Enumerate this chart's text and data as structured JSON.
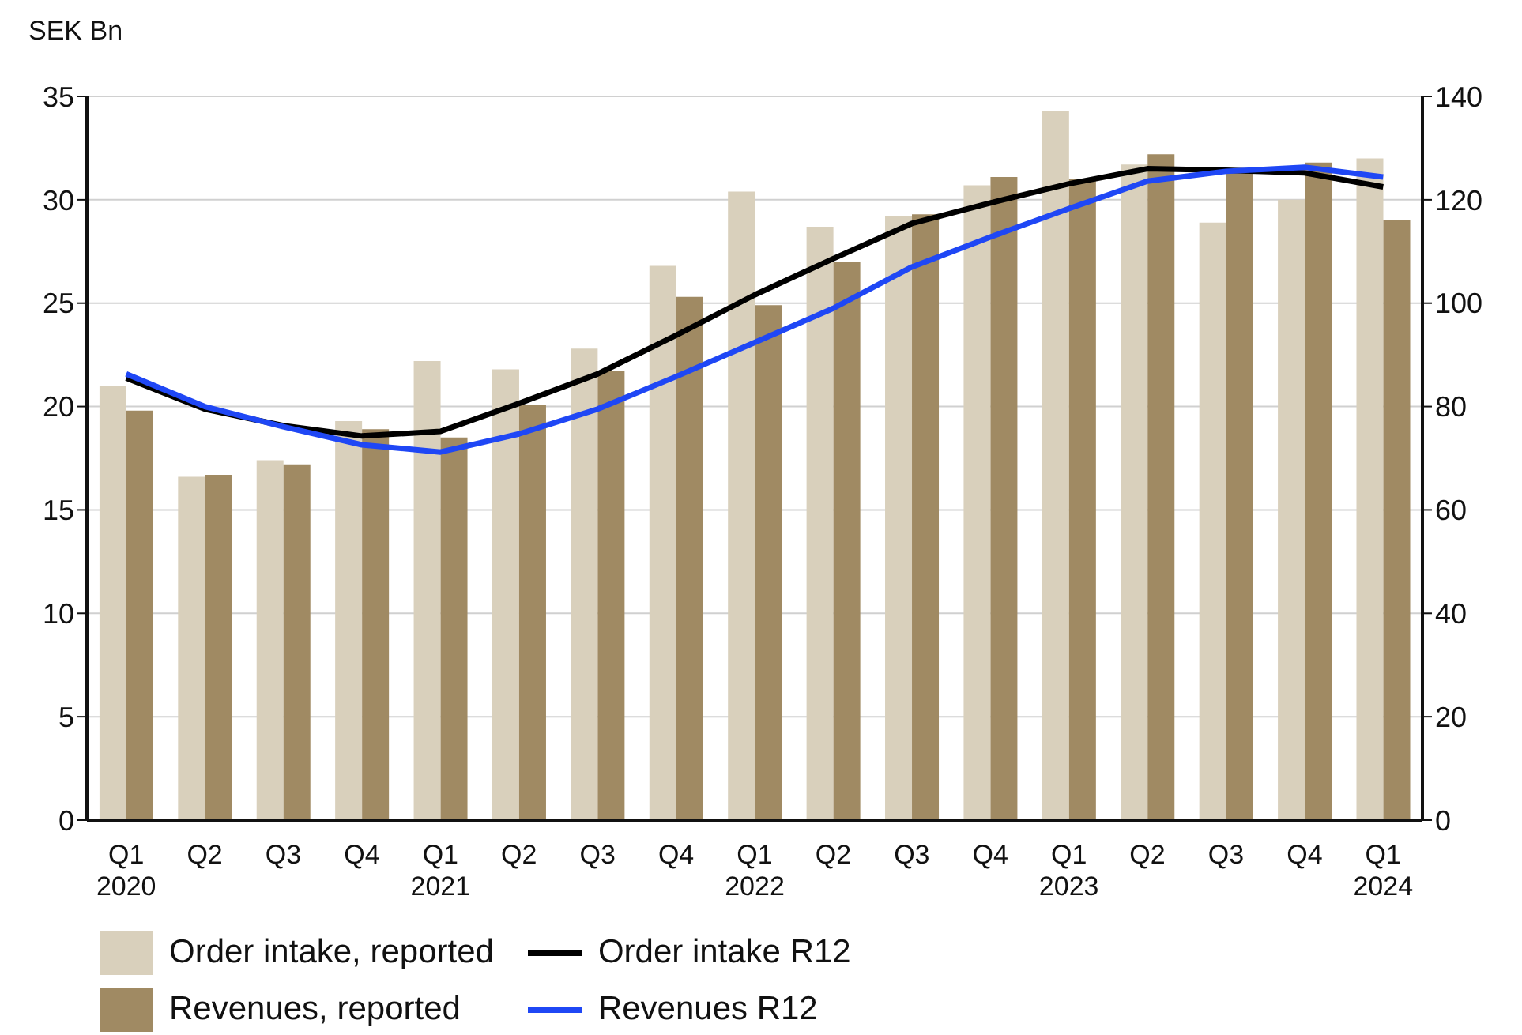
{
  "chart_data": {
    "type": "bar",
    "ylabel": "SEK Bn",
    "categories": [
      "Q1\n2020",
      "Q2",
      "Q3",
      "Q4",
      "Q1\n2021",
      "Q2",
      "Q3",
      "Q4",
      "Q1\n2022",
      "Q2",
      "Q3",
      "Q4",
      "Q1\n2023",
      "Q2",
      "Q3",
      "Q4",
      "Q1\n2024"
    ],
    "series": [
      {
        "name": "Order intake, reported",
        "color": "#d9d0bc",
        "values": [
          21.0,
          16.6,
          17.4,
          19.3,
          22.2,
          21.8,
          22.8,
          26.8,
          30.4,
          28.7,
          29.2,
          30.7,
          34.3,
          31.7,
          28.9,
          30.0,
          32.0
        ]
      },
      {
        "name": "Revenues, reported",
        "color": "#a08a63",
        "values": [
          19.8,
          16.7,
          17.2,
          18.9,
          18.5,
          20.1,
          21.7,
          25.3,
          24.9,
          27.0,
          29.3,
          31.1,
          31.0,
          32.2,
          31.5,
          31.8,
          29.0
        ]
      },
      {
        "name": "Order intake R12",
        "type": "line",
        "axis": "y2",
        "color": "#000000",
        "values": [
          85.5,
          79.5,
          76.3,
          74.3,
          75.2,
          80.6,
          86.3,
          93.8,
          101.6,
          108.6,
          115.4,
          119.4,
          123.1,
          126.0,
          125.7,
          125.2,
          122.5
        ]
      },
      {
        "name": "Revenues R12",
        "type": "line",
        "axis": "y2",
        "color": "#1f47f5",
        "values": [
          86.3,
          80.0,
          76.1,
          72.6,
          71.2,
          74.7,
          79.5,
          85.8,
          92.4,
          99.0,
          107.0,
          112.8,
          118.3,
          123.6,
          125.5,
          126.3,
          124.4
        ]
      }
    ],
    "ylim": [
      0,
      35
    ],
    "yticks": [
      0,
      5,
      10,
      15,
      20,
      25,
      30,
      35
    ],
    "y2lim": [
      0,
      140
    ],
    "y2ticks": [
      0,
      20,
      40,
      60,
      80,
      100,
      120,
      140
    ],
    "grid": "y",
    "legend": "bottom",
    "marker": "none",
    "line_style": "solid"
  }
}
